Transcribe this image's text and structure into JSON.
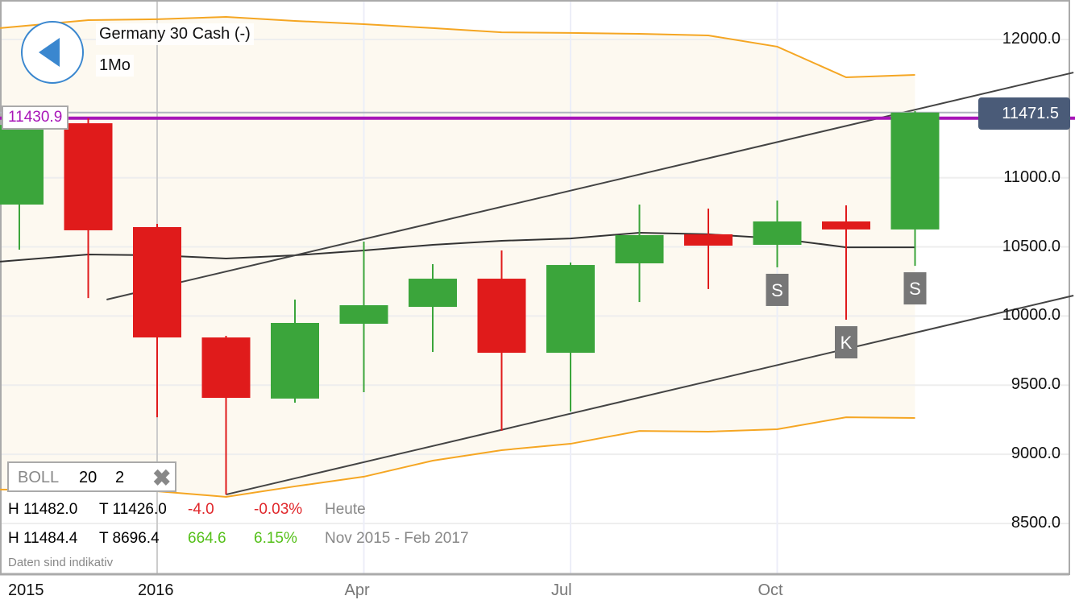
{
  "header": {
    "instrument": "Germany 30 Cash (-)",
    "timeframe": "1Mo",
    "back_icon": "back-arrow-icon"
  },
  "indicator": {
    "name": "BOLL",
    "period": "20",
    "stddev": "2",
    "remove_icon": "close-icon"
  },
  "stats": {
    "today": {
      "high": "H 11482.0",
      "low": "T 11426.0",
      "change": "-4.0",
      "change_pct": "-0.03%",
      "label": "Heute"
    },
    "range": {
      "high": "H 11484.4",
      "low": "T 8696.4",
      "change": "664.6",
      "change_pct": "6.15%",
      "label": "Nov 2015 - Feb 2017"
    },
    "disclaimer": "Daten sind indikativ"
  },
  "colors": {
    "up": "#3ba53b",
    "down": "#e01b1b",
    "bollinger": "#f5a623",
    "middle": "#333333",
    "hline": "#a815b8",
    "price_badge": "#4a5b78",
    "marker": "#777777"
  },
  "chart_data": {
    "type": "candlestick",
    "ylim": [
      8100,
      12250
    ],
    "yticks": [
      "12000.0",
      "11000.0",
      "10500.0",
      "10000.0",
      "9500.0",
      "9000.0",
      "8500.0"
    ],
    "xticks": [
      {
        "label": "2015",
        "date": "2015-01"
      },
      {
        "label": "2016",
        "date": "2016-01"
      },
      {
        "label": "Apr",
        "date": "2016-04"
      },
      {
        "label": "Jul",
        "date": "2016-07"
      },
      {
        "label": "Oct",
        "date": "2016-10"
      }
    ],
    "grid": true,
    "candles": [
      {
        "date": "2015-11",
        "open": 10806,
        "high": 11430,
        "low": 10480,
        "close": 11382
      },
      {
        "date": "2015-12",
        "open": 11394,
        "high": 11430,
        "low": 10130,
        "close": 10620
      },
      {
        "date": "2016-01",
        "open": 10643,
        "high": 10666,
        "low": 9268,
        "close": 9845
      },
      {
        "date": "2016-02",
        "open": 9845,
        "high": 9857,
        "low": 8709,
        "close": 9408
      },
      {
        "date": "2016-03",
        "open": 9403,
        "high": 10119,
        "low": 9373,
        "close": 9950
      },
      {
        "date": "2016-04",
        "open": 9944,
        "high": 10538,
        "low": 9449,
        "close": 10078
      },
      {
        "date": "2016-05",
        "open": 10066,
        "high": 10375,
        "low": 9740,
        "close": 10270
      },
      {
        "date": "2016-06",
        "open": 10270,
        "high": 10474,
        "low": 9170,
        "close": 9734
      },
      {
        "date": "2016-07",
        "open": 9734,
        "high": 10387,
        "low": 9309,
        "close": 10369
      },
      {
        "date": "2016-08",
        "open": 10381,
        "high": 10806,
        "low": 10101,
        "close": 10585
      },
      {
        "date": "2016-09",
        "open": 10591,
        "high": 10777,
        "low": 10195,
        "close": 10509
      },
      {
        "date": "2016-10",
        "open": 10515,
        "high": 10835,
        "low": 10352,
        "close": 10684
      },
      {
        "date": "2016-11",
        "open": 10684,
        "high": 10800,
        "low": 9973,
        "close": 10626
      },
      {
        "date": "2016-12",
        "open": 10626,
        "high": 11482,
        "low": 10363,
        "close": 11471.5
      }
    ],
    "bollinger": {
      "upper": [
        12082,
        12140,
        12146,
        12163,
        12134,
        12111,
        12082,
        12052,
        12047,
        12041,
        12029,
        11948,
        11726,
        11744
      ],
      "middle": [
        10393,
        10445,
        10439,
        10416,
        10439,
        10474,
        10515,
        10544,
        10561,
        10602,
        10591,
        10561,
        10497,
        10497
      ],
      "lower": [
        8745,
        8738,
        8733,
        8692,
        8768,
        8838,
        8954,
        9030,
        9076,
        9169,
        9164,
        9181,
        9268,
        9263
      ]
    },
    "trendlines": [
      {
        "from": {
          "date": "2015-12-09",
          "value": 10119
        },
        "to": {
          "date": "2017-02-10",
          "value": 11761
        }
      },
      {
        "from": {
          "date": "2016-02-01",
          "value": 8709
        },
        "to": {
          "date": "2017-02-10",
          "value": 10148
        }
      }
    ],
    "hline": {
      "value": "11430.9"
    },
    "last_price": "11471.5",
    "markers": [
      {
        "date": "2016-10",
        "label": "S"
      },
      {
        "date": "2016-11",
        "label": "K"
      },
      {
        "date": "2016-12",
        "label": "S"
      }
    ]
  }
}
